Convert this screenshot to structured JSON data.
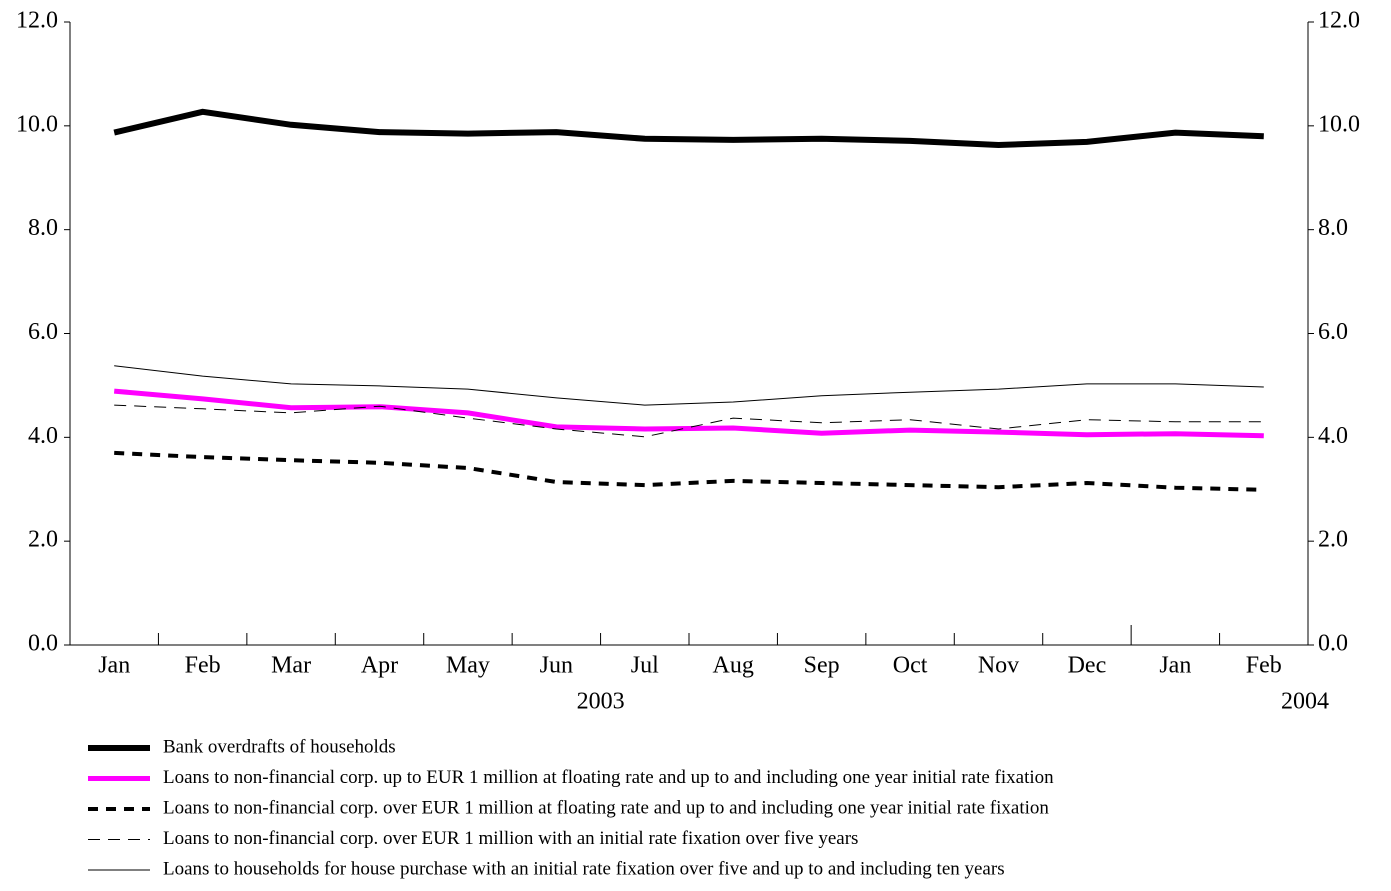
{
  "chart_data": {
    "type": "line",
    "categories": [
      "Jan",
      "Feb",
      "Mar",
      "Apr",
      "May",
      "Jun",
      "Jul",
      "Aug",
      "Sep",
      "Oct",
      "Nov",
      "Dec",
      "Jan",
      "Feb"
    ],
    "year_labels": [
      "2003",
      "2004"
    ],
    "ylim": [
      0,
      12
    ],
    "yticks": [
      {
        "value": 0,
        "label": "0.0"
      },
      {
        "value": 2,
        "label": "2.0"
      },
      {
        "value": 4,
        "label": "4.0"
      },
      {
        "value": 6,
        "label": "6.0"
      },
      {
        "value": 8,
        "label": "8.0"
      },
      {
        "value": 10,
        "label": "10.0"
      },
      {
        "value": 12,
        "label": "12.0"
      }
    ],
    "y2lim": [
      0,
      12
    ],
    "y2ticks": [
      {
        "value": 0,
        "label": "0.0"
      },
      {
        "value": 2,
        "label": "2.0"
      },
      {
        "value": 4,
        "label": "4.0"
      },
      {
        "value": 6,
        "label": "6.0"
      },
      {
        "value": 8,
        "label": "8.0"
      },
      {
        "value": 10,
        "label": "10.0"
      },
      {
        "value": 12,
        "label": "12.0"
      }
    ],
    "series": [
      {
        "name": "Bank overdrafts of households",
        "color": "#000000",
        "line_width": 6,
        "dash": "none",
        "values": [
          9.87,
          10.27,
          10.02,
          9.88,
          9.85,
          9.88,
          9.75,
          9.73,
          9.75,
          9.71,
          9.63,
          9.69,
          9.87,
          9.8
        ]
      },
      {
        "name": "Loans to non-financial corp. up to EUR 1 million at floating rate and up to and including one year initial rate fixation",
        "color": "#ff00ff",
        "line_width": 5,
        "dash": "none",
        "values": [
          4.89,
          4.74,
          4.57,
          4.59,
          4.47,
          4.2,
          4.16,
          4.18,
          4.08,
          4.14,
          4.1,
          4.05,
          4.07,
          4.03
        ]
      },
      {
        "name": "Loans to non-financial corp. over EUR 1 million at floating rate and up to and including one year initial rate fixation",
        "color": "#000000",
        "line_width": 4,
        "dash": "10,8",
        "values": [
          3.7,
          3.62,
          3.56,
          3.51,
          3.41,
          3.14,
          3.08,
          3.16,
          3.12,
          3.08,
          3.04,
          3.12,
          3.03,
          2.99
        ]
      },
      {
        "name": "Loans to non-financial corp. over EUR 1 million with an initial rate fixation over five years",
        "color": "#000000",
        "line_width": 1,
        "dash": "12,8",
        "values": [
          4.62,
          4.55,
          4.47,
          4.6,
          4.37,
          4.16,
          4.01,
          4.37,
          4.28,
          4.34,
          4.16,
          4.34,
          4.3,
          4.3
        ]
      },
      {
        "name": "Loans to households for house purchase with an initial rate fixation over five and up to and including ten years",
        "color": "#000000",
        "line_width": 1,
        "dash": "none",
        "values": [
          5.38,
          5.18,
          5.03,
          4.99,
          4.93,
          4.76,
          4.62,
          4.68,
          4.8,
          4.87,
          4.93,
          5.03,
          5.03,
          4.97
        ]
      }
    ]
  }
}
